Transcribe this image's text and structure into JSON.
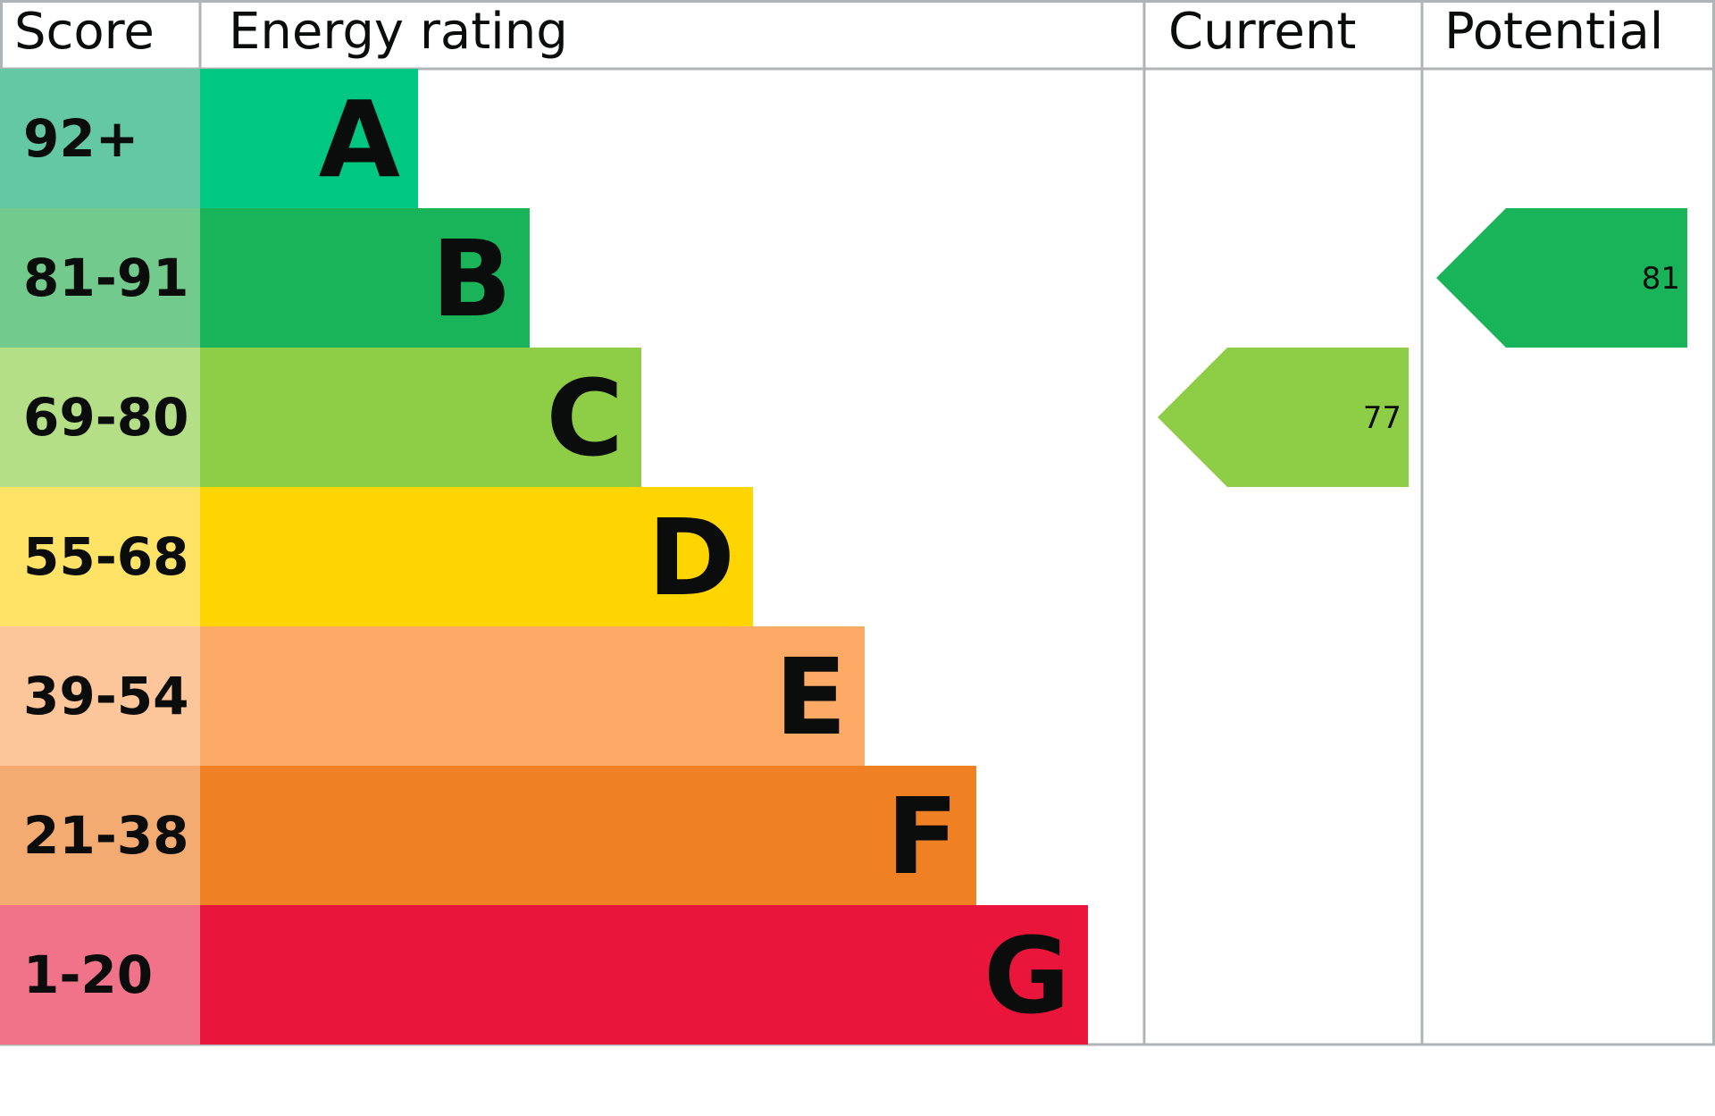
{
  "chart_data": {
    "type": "table",
    "headers": {
      "score": "Score",
      "rating": "Energy rating",
      "current": "Current",
      "potential": "Potential"
    },
    "bands": [
      {
        "letter": "A",
        "range": "92+",
        "color": "#00c781",
        "light": "#64c8a4"
      },
      {
        "letter": "B",
        "range": "81-91",
        "color": "#19b459",
        "light": "#72cb8c"
      },
      {
        "letter": "C",
        "range": "69-80",
        "color": "#8dce46",
        "light": "#b5df86"
      },
      {
        "letter": "D",
        "range": "55-68",
        "color": "#ffd500",
        "light": "#fee366"
      },
      {
        "letter": "E",
        "range": "39-54",
        "color": "#fcaa65",
        "light": "#fdc69a"
      },
      {
        "letter": "F",
        "range": "21-38",
        "color": "#ef8023",
        "light": "#f3ab72"
      },
      {
        "letter": "G",
        "range": "1-20",
        "color": "#e9153b",
        "light": "#f1738a"
      }
    ],
    "current": {
      "value": "77",
      "band": "C"
    },
    "potential": {
      "value": "81",
      "band": "B"
    }
  }
}
